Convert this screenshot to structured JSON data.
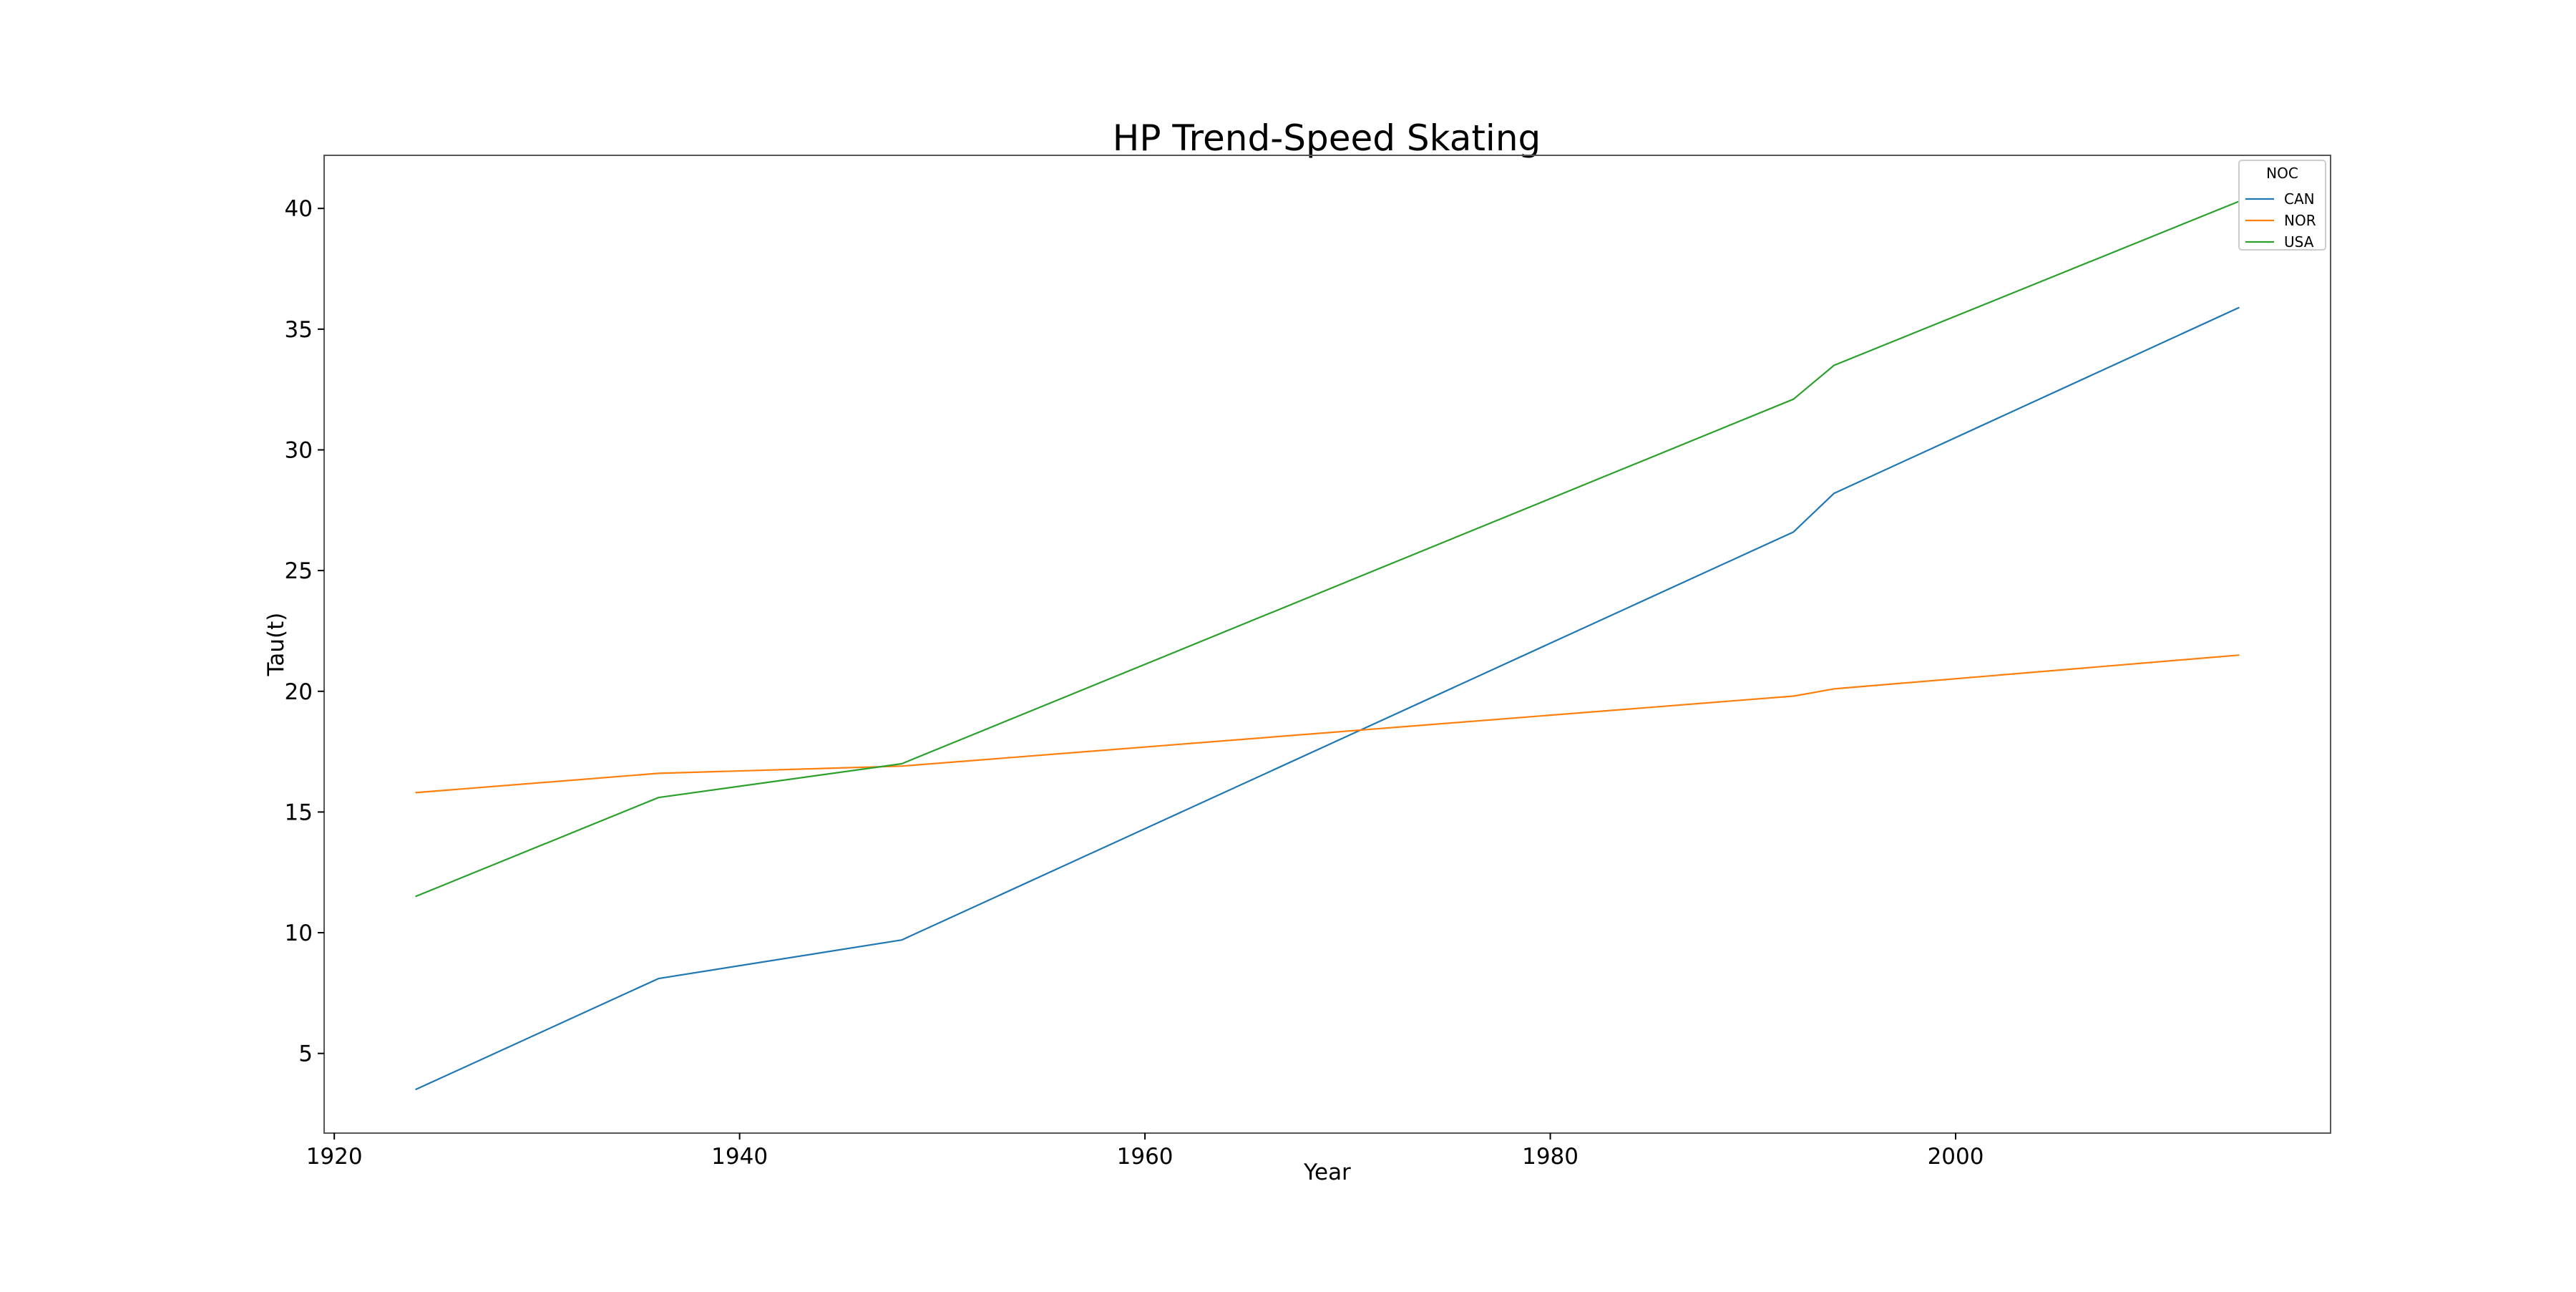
{
  "chart_data": {
    "type": "line",
    "title": "HP Trend-Speed Skating",
    "xlabel": "Year",
    "ylabel": "Tau(t)",
    "xlim": [
      1919.5,
      2018.5
    ],
    "ylim": [
      1.7,
      42.2
    ],
    "xticks": [
      1920,
      1940,
      1960,
      1980,
      2000
    ],
    "yticks": [
      5,
      10,
      15,
      20,
      25,
      30,
      35,
      40
    ],
    "grid": false,
    "legend": {
      "title": "NOC",
      "placement": "top-right"
    },
    "series": [
      {
        "name": "CAN",
        "color": "#1f77b4",
        "x": [
          1924,
          1936,
          1948,
          1992,
          1994,
          2014
        ],
        "y": [
          3.5,
          8.1,
          9.7,
          26.6,
          28.2,
          35.9
        ]
      },
      {
        "name": "NOR",
        "color": "#ff7f0e",
        "x": [
          1924,
          1936,
          1948,
          1992,
          1994,
          2014
        ],
        "y": [
          15.8,
          16.6,
          16.9,
          19.8,
          20.1,
          21.5
        ]
      },
      {
        "name": "USA",
        "color": "#2ca02c",
        "x": [
          1924,
          1936,
          1948,
          1992,
          1994,
          2014
        ],
        "y": [
          11.5,
          15.6,
          17.0,
          32.1,
          33.5,
          40.3
        ]
      }
    ]
  }
}
